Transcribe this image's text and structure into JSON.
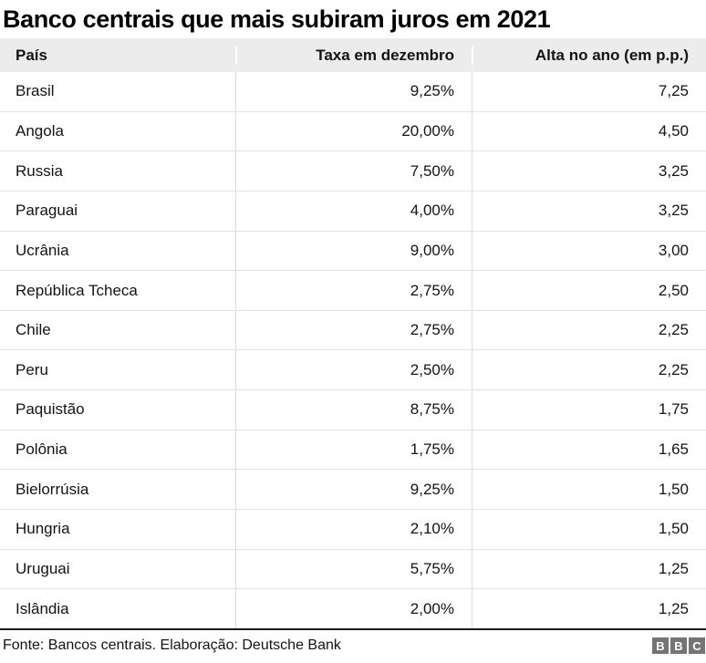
{
  "title": "Banco centrais que mais subiram juros em 2021",
  "chart_data": {
    "type": "table",
    "title": "Banco centrais que mais subiram juros em 2021",
    "columns": [
      "País",
      "Taxa em dezembro",
      "Alta no ano (em p.p.)"
    ],
    "rows": [
      [
        "Brasil",
        "9,25%",
        "7,25"
      ],
      [
        "Angola",
        "20,00%",
        "4,50"
      ],
      [
        "Russia",
        "7,50%",
        "3,25"
      ],
      [
        "Paraguai",
        "4,00%",
        "3,25"
      ],
      [
        "Ucrânia",
        "9,00%",
        "3,00"
      ],
      [
        "República Tcheca",
        "2,75%",
        "2,50"
      ],
      [
        "Chile",
        "2,75%",
        "2,25"
      ],
      [
        "Peru",
        "2,50%",
        "2,25"
      ],
      [
        "Paquistão",
        "8,75%",
        "1,75"
      ],
      [
        "Polônia",
        "1,75%",
        "1,65"
      ],
      [
        "Bielorrúsia",
        "9,25%",
        "1,50"
      ],
      [
        "Hungria",
        "2,10%",
        "1,50"
      ],
      [
        "Uruguai",
        "5,75%",
        "1,25"
      ],
      [
        "Islândia",
        "2,00%",
        "1,25"
      ]
    ],
    "source": "Fonte: Bancos centrais. Elaboração: Deutsche Bank"
  },
  "footer": {
    "source": "Fonte: Bancos centrais. Elaboração: Deutsche Bank",
    "logo_letters": [
      "B",
      "B",
      "C"
    ]
  },
  "colors": {
    "header_bg": "#ececec",
    "row_divider": "#e2e2e2",
    "column_divider": "#dcdcdc",
    "bottom_rule": "#1a1a1a",
    "logo_bg": "#757575",
    "text": "#141414"
  }
}
